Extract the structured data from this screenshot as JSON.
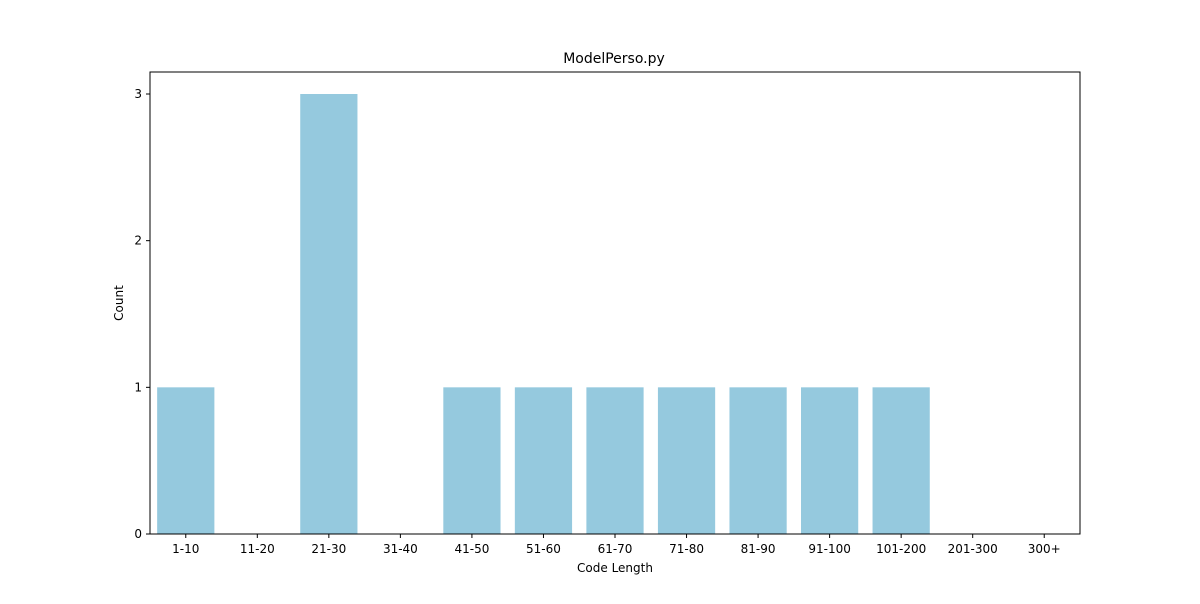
{
  "chart_data": {
    "type": "bar",
    "title": "ModelPerso.py",
    "xlabel": "Code Length",
    "ylabel": "Count",
    "categories": [
      "1-10",
      "11-20",
      "21-30",
      "31-40",
      "41-50",
      "51-60",
      "61-70",
      "71-80",
      "81-90",
      "91-100",
      "101-200",
      "201-300",
      "300+"
    ],
    "values": [
      1,
      0,
      3,
      0,
      1,
      1,
      1,
      1,
      1,
      1,
      1,
      0,
      0
    ],
    "ylim": [
      0,
      3.15
    ],
    "yticks": [
      0,
      1,
      2,
      3
    ],
    "grid": false,
    "bar_color": "#95c9de",
    "axis_color": "#000000",
    "background": "#ffffff"
  }
}
